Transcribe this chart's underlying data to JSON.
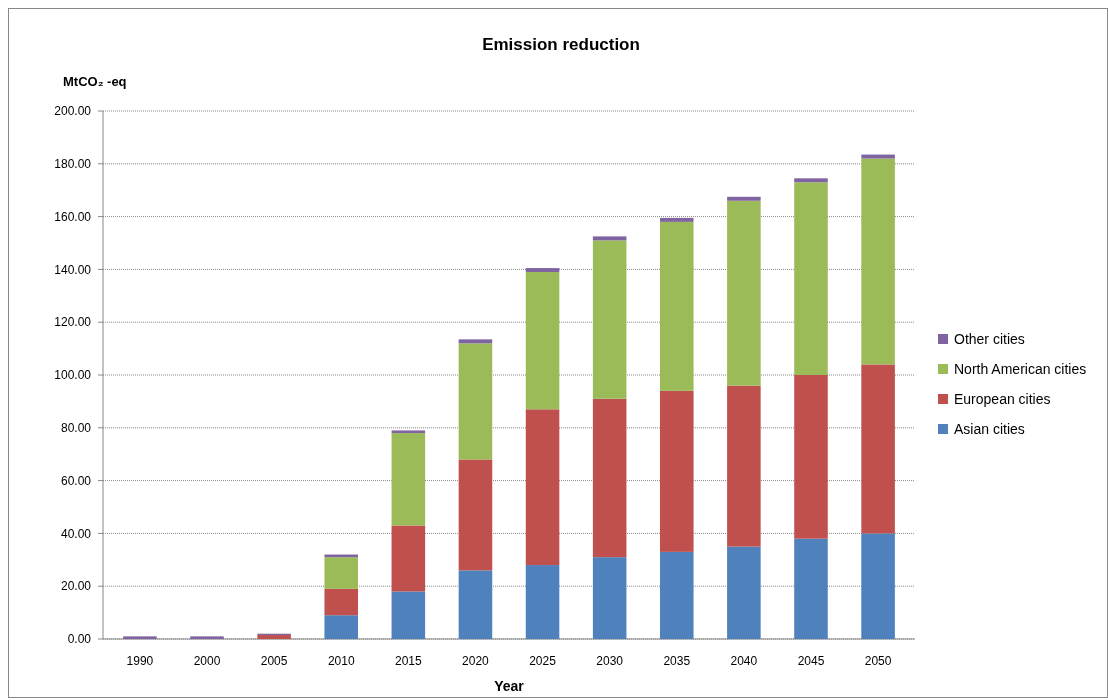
{
  "chart_data": {
    "type": "bar",
    "title": "Emission reduction",
    "ylabel": "MtCO₂ -eq",
    "xlabel": "Year",
    "stacked": true,
    "grid": "y",
    "legend": "right",
    "categories": [
      "1990",
      "2000",
      "2005",
      "2010",
      "2015",
      "2020",
      "2025",
      "2030",
      "2035",
      "2040",
      "2045",
      "2050"
    ],
    "ylim": [
      0,
      200
    ],
    "yticks": [
      {
        "value": 0,
        "label": "0.00"
      },
      {
        "value": 20,
        "label": "20.00"
      },
      {
        "value": 40,
        "label": "40.00"
      },
      {
        "value": 60,
        "label": "60.00"
      },
      {
        "value": 80,
        "label": "80.00"
      },
      {
        "value": 100,
        "label": "100.00"
      },
      {
        "value": 120,
        "label": "120.00"
      },
      {
        "value": 140,
        "label": "140.00"
      },
      {
        "value": 160,
        "label": "160.00"
      },
      {
        "value": 180,
        "label": "180.00"
      },
      {
        "value": 200,
        "label": "200.00"
      }
    ],
    "series": [
      {
        "name": "Asian cities",
        "color": "#4f81bd",
        "values": [
          0,
          0,
          0,
          9,
          18,
          26,
          28,
          31,
          33,
          35,
          38,
          40
        ]
      },
      {
        "name": "European cities",
        "color": "#c0504d",
        "values": [
          0,
          0,
          1.5,
          10,
          25,
          42,
          59,
          60,
          61,
          61,
          62,
          64
        ]
      },
      {
        "name": "North American cities",
        "color": "#9bbb59",
        "values": [
          0,
          0,
          0,
          12,
          35,
          44,
          52,
          60,
          64,
          70,
          73,
          78
        ]
      },
      {
        "name": "Other cities",
        "color": "#8064a2",
        "values": [
          1,
          1,
          0.5,
          1,
          1,
          1.5,
          1.5,
          1.5,
          1.5,
          1.5,
          1.5,
          1.5
        ]
      }
    ]
  }
}
